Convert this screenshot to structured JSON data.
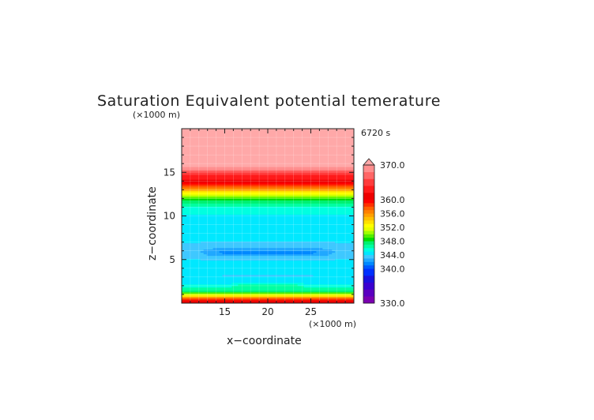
{
  "chart_data": {
    "type": "heatmap",
    "title": "Saturation Equivalent potential temerature",
    "time_label": "6720 s",
    "xlabel": "x−coordinate",
    "ylabel": "z−coordinate",
    "x_unit": "(×1000 m)",
    "y_unit": "(×1000 m)",
    "xlim": [
      10,
      30
    ],
    "ylim": [
      0,
      20
    ],
    "x_ticks": [
      15,
      20,
      25
    ],
    "y_ticks": [
      5,
      10,
      15
    ],
    "grid": true,
    "colorbar": {
      "min": 330,
      "max": 370,
      "labels": [
        "370.0",
        "360.0",
        "356.0",
        "352.0",
        "348.0",
        "344.0",
        "340.0",
        "330.0"
      ],
      "label_values": [
        370,
        360,
        356,
        352,
        348,
        344,
        340,
        330
      ],
      "levels": [
        {
          "from": 330,
          "to": 332,
          "color": "#7a00b0"
        },
        {
          "from": 332,
          "to": 334,
          "color": "#5a00c0"
        },
        {
          "from": 334,
          "to": 336,
          "color": "#3a00d0"
        },
        {
          "from": 336,
          "to": 338,
          "color": "#1a10dd"
        },
        {
          "from": 338,
          "to": 340,
          "color": "#0030ff"
        },
        {
          "from": 340,
          "to": 341,
          "color": "#0058ff"
        },
        {
          "from": 341,
          "to": 342,
          "color": "#0088ff"
        },
        {
          "from": 342,
          "to": 343,
          "color": "#20a8ff"
        },
        {
          "from": 343,
          "to": 344,
          "color": "#3ec8ff"
        },
        {
          "from": 344,
          "to": 345,
          "color": "#00e8ff"
        },
        {
          "from": 345,
          "to": 346,
          "color": "#00ffe0"
        },
        {
          "from": 346,
          "to": 347,
          "color": "#00ffa0"
        },
        {
          "from": 347,
          "to": 348,
          "color": "#00f070"
        },
        {
          "from": 348,
          "to": 349,
          "color": "#00dd00"
        },
        {
          "from": 349,
          "to": 350,
          "color": "#50ee00"
        },
        {
          "from": 350,
          "to": 351,
          "color": "#a0ff00"
        },
        {
          "from": 351,
          "to": 352,
          "color": "#e6ff00"
        },
        {
          "from": 352,
          "to": 353,
          "color": "#ffff00"
        },
        {
          "from": 353,
          "to": 354,
          "color": "#ffe000"
        },
        {
          "from": 354,
          "to": 355,
          "color": "#ffc000"
        },
        {
          "from": 355,
          "to": 356,
          "color": "#ffa000"
        },
        {
          "from": 356,
          "to": 357,
          "color": "#ff8000"
        },
        {
          "from": 357,
          "to": 358,
          "color": "#ff6000"
        },
        {
          "from": 358,
          "to": 359,
          "color": "#ff3000"
        },
        {
          "from": 359,
          "to": 360,
          "color": "#ff0000"
        },
        {
          "from": 360,
          "to": 362,
          "color": "#ee0000"
        },
        {
          "from": 362,
          "to": 364,
          "color": "#ff1a1a"
        },
        {
          "from": 364,
          "to": 366,
          "color": "#ff3c3c"
        },
        {
          "from": 366,
          "to": 368,
          "color": "#ff6666"
        },
        {
          "from": 368,
          "to": 370,
          "color": "#ff8e8e"
        },
        {
          "from": 370,
          "to": 374,
          "color": "#ffa8a8"
        }
      ]
    },
    "profile_z": [
      0,
      0.3,
      0.6,
      0.9,
      1.2,
      1.5,
      2.0,
      2.5,
      3.0,
      3.5,
      4.0,
      4.5,
      5.0,
      5.5,
      6.0,
      6.5,
      7.0,
      8.0,
      9.0,
      10.0,
      11.0,
      11.5,
      12.0,
      12.5,
      13.0,
      13.5,
      14.0,
      14.5,
      15.0,
      15.4,
      16.0,
      18.0,
      20.0
    ],
    "profile_theta": [
      362,
      360,
      357,
      352,
      349,
      347,
      345.5,
      344.2,
      344.8,
      344.5,
      344.3,
      344.2,
      344.0,
      343.6,
      343.2,
      343.5,
      344.0,
      344.4,
      344.6,
      344.9,
      345.5,
      347,
      349,
      352,
      355,
      358,
      361,
      363,
      365,
      369,
      371,
      371,
      371
    ],
    "anomalies": [
      {
        "x_center": 20.0,
        "z_center": 5.8,
        "x_half_width": 8.0,
        "z_half_width": 0.45,
        "delta": -1.8
      },
      {
        "x_center": 20.0,
        "z_center": 2.1,
        "x_half_width": 4.5,
        "z_half_width": 0.35,
        "delta": 1.2
      },
      {
        "x_center": 20.0,
        "z_center": 3.2,
        "x_half_width": 9.0,
        "z_half_width": 0.25,
        "delta": -0.8
      }
    ]
  }
}
